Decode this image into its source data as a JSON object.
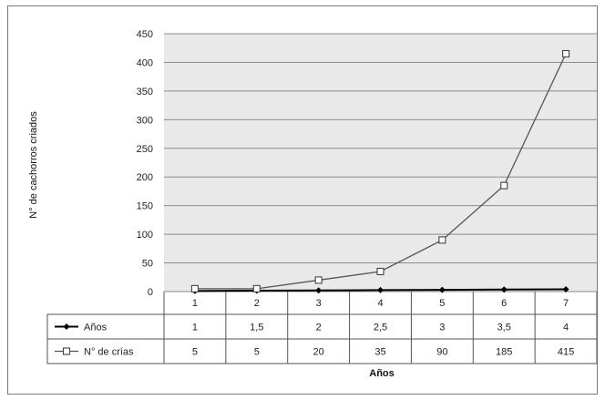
{
  "chart_data": {
    "type": "line",
    "title": "",
    "xlabel": "Años",
    "ylabel": "N° de cachorros criados",
    "ylim": [
      0,
      450
    ],
    "yticks": [
      "0",
      "50",
      "100",
      "150",
      "200",
      "250",
      "300",
      "350",
      "400",
      "450"
    ],
    "categories": [
      "1",
      "2",
      "3",
      "4",
      "5",
      "6",
      "7"
    ],
    "grid": true,
    "legend_placement": "table-below",
    "series": [
      {
        "name": "Años",
        "marker": "filled-diamond",
        "color": "#000000",
        "values": [
          1,
          1.5,
          2,
          2.5,
          3,
          3.5,
          4
        ],
        "labels": [
          "1",
          "1,5",
          "2",
          "2,5",
          "3",
          "3,5",
          "4"
        ]
      },
      {
        "name": "N° de crías",
        "marker": "hollow-square",
        "color": "#555555",
        "values": [
          5,
          5,
          20,
          35,
          90,
          185,
          415
        ],
        "labels": [
          "5",
          "5",
          "20",
          "35",
          "90",
          "185",
          "415"
        ]
      }
    ]
  },
  "colors": {
    "plot_bg": "#e9e9e9",
    "grid": "#8c8c8c",
    "border": "#7a7a7a"
  }
}
